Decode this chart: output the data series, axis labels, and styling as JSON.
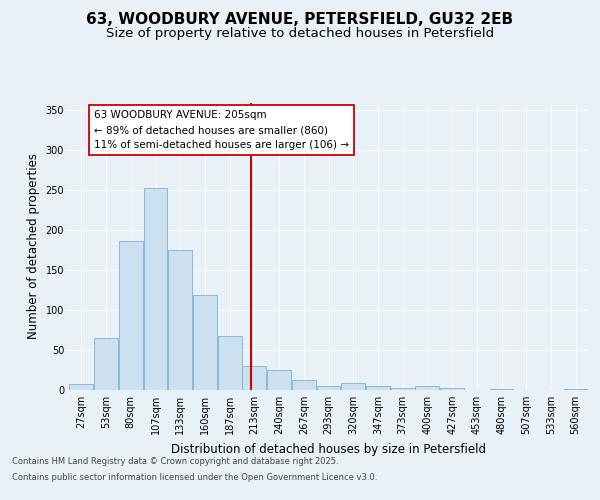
{
  "title": "63, WOODBURY AVENUE, PETERSFIELD, GU32 2EB",
  "subtitle": "Size of property relative to detached houses in Petersfield",
  "xlabel": "Distribution of detached houses by size in Petersfield",
  "ylabel": "Number of detached properties",
  "annotation_title": "63 WOODBURY AVENUE: 205sqm",
  "annotation_line1": "← 89% of detached houses are smaller (860)",
  "annotation_line2": "11% of semi-detached houses are larger (106) →",
  "footer1": "Contains HM Land Registry data © Crown copyright and database right 2025.",
  "footer2": "Contains public sector information licensed under the Open Government Licence v3.0.",
  "vline_x": 7,
  "categories": [
    "27sqm",
    "53sqm",
    "80sqm",
    "107sqm",
    "133sqm",
    "160sqm",
    "187sqm",
    "213sqm",
    "240sqm",
    "267sqm",
    "293sqm",
    "320sqm",
    "347sqm",
    "373sqm",
    "400sqm",
    "427sqm",
    "453sqm",
    "480sqm",
    "507sqm",
    "533sqm",
    "560sqm"
  ],
  "bar_values": [
    7,
    65,
    187,
    253,
    175,
    119,
    68,
    30,
    25,
    12,
    5,
    9,
    5,
    3,
    5,
    2,
    0,
    1,
    0,
    0,
    1
  ],
  "bar_color": "#cde0f0",
  "bar_edge_color": "#7ab4d4",
  "vline_color": "#cc0000",
  "ylim": [
    0,
    360
  ],
  "yticks": [
    0,
    50,
    100,
    150,
    200,
    250,
    300,
    350
  ],
  "bg_color": "#e8f0f8",
  "plot_bg_color": "#e8f0f8",
  "grid_color": "#ffffff",
  "annotation_box_facecolor": "#ffffff",
  "annotation_box_edge": "#cc0000",
  "title_fontsize": 11,
  "subtitle_fontsize": 9.5,
  "axis_label_fontsize": 8.5,
  "tick_fontsize": 7,
  "annotation_fontsize": 7.5,
  "footer_fontsize": 6
}
